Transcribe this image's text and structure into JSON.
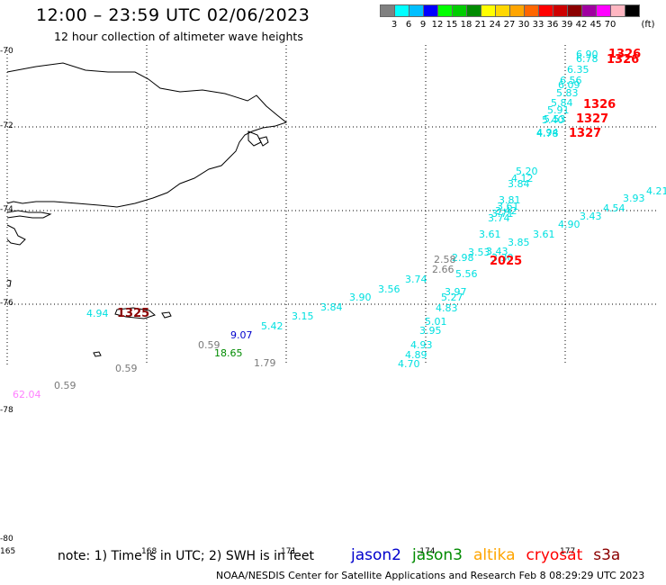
{
  "title": "12:00 – 23:59 UTC 02/06/2023",
  "subtitle": "12 hour collection of altimeter wave heights",
  "legend": {
    "unit": "(ft)",
    "swatches": [
      "#808080",
      "#00ffff",
      "#00bfff",
      "#0000ff",
      "#00ff00",
      "#00cd00",
      "#008b00",
      "#ffff00",
      "#ffd700",
      "#ffa500",
      "#ff6600",
      "#ff0000",
      "#cd0000",
      "#8b0000",
      "#a000a0",
      "#ff00ff",
      "#ffb6c1",
      "#000000"
    ],
    "labels": [
      "3",
      "6",
      "9",
      "12",
      "15",
      "18",
      "21",
      "24",
      "27",
      "30",
      "33",
      "36",
      "39",
      "42",
      "45",
      "70"
    ]
  },
  "axes": {
    "y_labels": [
      "-70",
      "-72",
      "-74",
      "-76",
      "-78",
      "-80"
    ],
    "x_labels": [
      "165",
      "168",
      "171",
      "-174",
      "177"
    ]
  },
  "observations": [
    {
      "text": "6.90",
      "color": "#00e0e0"
    },
    {
      "text": "6.78",
      "color": "#00e0e0"
    },
    {
      "text": "6.35",
      "color": "#00e0e0"
    },
    {
      "text": "6.56",
      "color": "#00e0e0"
    },
    {
      "text": "6.09",
      "color": "#00e0e0"
    },
    {
      "text": "5.83",
      "color": "#00e0e0"
    },
    {
      "text": "5.84",
      "color": "#00e0e0"
    },
    {
      "text": "5.91",
      "color": "#00e0e0"
    },
    {
      "text": "5.53",
      "color": "#00e0e0"
    },
    {
      "text": "5.40",
      "color": "#00e0e0"
    },
    {
      "text": "4.94",
      "color": "#00e0e0"
    },
    {
      "text": "4.78",
      "color": "#00e0e0"
    },
    {
      "text": "5.20",
      "color": "#00e0e0"
    },
    {
      "text": "4.12",
      "color": "#00e0e0"
    },
    {
      "text": "3.84",
      "color": "#00e0e0"
    },
    {
      "text": "3.81",
      "color": "#00e0e0"
    },
    {
      "text": "3.61",
      "color": "#00e0e0"
    },
    {
      "text": "3.42",
      "color": "#00e0e0"
    },
    {
      "text": "3.71",
      "color": "#00e0e0"
    },
    {
      "text": "3.74",
      "color": "#00e0e0"
    },
    {
      "text": "4.21",
      "color": "#00e0e0"
    },
    {
      "text": "3.93",
      "color": "#00e0e0"
    },
    {
      "text": "4.54",
      "color": "#00e0e0"
    },
    {
      "text": "3.43",
      "color": "#00e0e0"
    },
    {
      "text": "4.90",
      "color": "#00e0e0"
    },
    {
      "text": "3.61",
      "color": "#00e0e0"
    },
    {
      "text": "3.61",
      "color": "#00e0e0"
    },
    {
      "text": "3.85",
      "color": "#00e0e0"
    },
    {
      "text": "3.53",
      "color": "#00e0e0"
    },
    {
      "text": "3.43",
      "color": "#00e0e0"
    },
    {
      "text": "3.30",
      "color": "#00e0e0"
    },
    {
      "text": "2.98",
      "color": "#00e0e0"
    },
    {
      "text": "2.58",
      "color": "#7a7a7a"
    },
    {
      "text": "2.66",
      "color": "#7a7a7a"
    },
    {
      "text": "5.56",
      "color": "#00e0e0"
    },
    {
      "text": "3.74",
      "color": "#00e0e0"
    },
    {
      "text": "3.56",
      "color": "#00e0e0"
    },
    {
      "text": "3.90",
      "color": "#00e0e0"
    },
    {
      "text": "3.84",
      "color": "#00e0e0"
    },
    {
      "text": "3.15",
      "color": "#00e0e0"
    },
    {
      "text": "5.42",
      "color": "#00e0e0"
    },
    {
      "text": "3.97",
      "color": "#00e0e0"
    },
    {
      "text": "5.27",
      "color": "#00e0e0"
    },
    {
      "text": "4.83",
      "color": "#00e0e0"
    },
    {
      "text": "5.01",
      "color": "#00e0e0"
    },
    {
      "text": "3.95",
      "color": "#00e0e0"
    },
    {
      "text": "4.93",
      "color": "#00e0e0"
    },
    {
      "text": "4.89",
      "color": "#00e0e0"
    },
    {
      "text": "4.70",
      "color": "#00e0e0"
    },
    {
      "text": "4.94",
      "color": "#00e0e0"
    },
    {
      "text": "9.07",
      "color": "#0000cc"
    },
    {
      "text": "0.59",
      "color": "#7a7a7a"
    },
    {
      "text": "18.65",
      "color": "#008b00"
    },
    {
      "text": "1.79",
      "color": "#7a7a7a"
    },
    {
      "text": "0.59",
      "color": "#7a7a7a"
    },
    {
      "text": "0.59",
      "color": "#7a7a7a"
    },
    {
      "text": "62.04",
      "color": "#ff80ff"
    }
  ],
  "passes": [
    {
      "text": "1326",
      "color": "#ff0000"
    },
    {
      "text": "1326",
      "color": "#ff0000"
    },
    {
      "text": "1326",
      "color": "#ff0000"
    },
    {
      "text": "1327",
      "color": "#ff0000"
    },
    {
      "text": "1327",
      "color": "#ff0000"
    },
    {
      "text": "2025",
      "color": "#ff0000"
    },
    {
      "text": "1325",
      "color": "#8b0000"
    }
  ],
  "footer": {
    "note": "note: 1) Time is in UTC; 2) SWH is in feet",
    "missions": [
      {
        "name": "jason2",
        "color": "#0000cc"
      },
      {
        "name": "jason3",
        "color": "#008b00"
      },
      {
        "name": "altika",
        "color": "#ffa500"
      },
      {
        "name": "cryosat",
        "color": "#ff0000"
      },
      {
        "name": "s3a",
        "color": "#8b0000"
      }
    ],
    "credit": "NOAA/NESDIS Center for Satellite Applications and Research   Feb  8 08:29:29 UTC 2023"
  }
}
